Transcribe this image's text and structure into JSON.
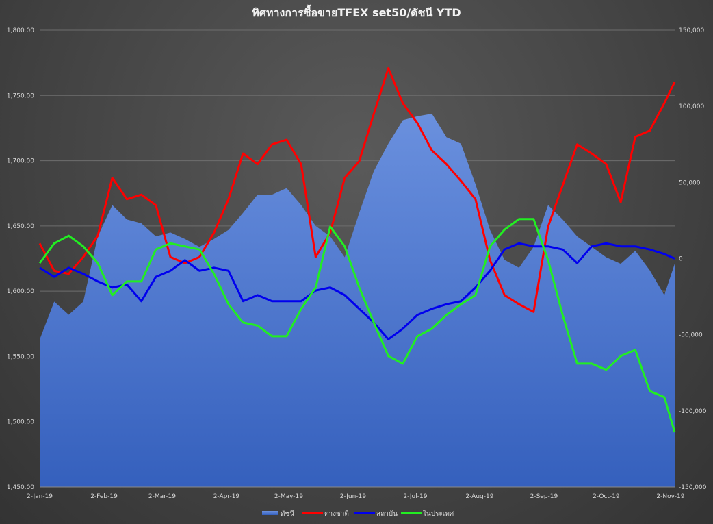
{
  "chart_data": {
    "type": "line",
    "title": "ทิศทางการซื้อขายTFEX set50/ดัชนี YTD",
    "x_unit": "days since 2-Jan-19",
    "x": [
      0,
      7,
      14,
      21,
      28,
      35,
      42,
      49,
      56,
      63,
      70,
      77,
      84,
      91,
      98,
      105,
      112,
      119,
      126,
      133,
      140,
      147,
      154,
      161,
      168,
      175,
      182,
      189,
      196,
      203,
      210,
      217,
      224,
      231,
      238,
      245,
      252,
      259,
      266,
      273,
      280,
      287,
      294,
      301,
      306
    ],
    "xlim": [
      0,
      306
    ],
    "x_ticks": [
      {
        "label": "2-Jan-19",
        "day": 0
      },
      {
        "label": "2-Feb-19",
        "day": 31
      },
      {
        "label": "2-Mar-19",
        "day": 59
      },
      {
        "label": "2-Apr-19",
        "day": 90
      },
      {
        "label": "2-May-19",
        "day": 120
      },
      {
        "label": "2-Jun-19",
        "day": 151
      },
      {
        "label": "2-Jul-19",
        "day": 181
      },
      {
        "label": "2-Aug-19",
        "day": 212
      },
      {
        "label": "2-Sep-19",
        "day": 243
      },
      {
        "label": "2-Oct-19",
        "day": 273
      },
      {
        "label": "2-Nov-19",
        "day": 304
      }
    ],
    "y_left": {
      "ylim": [
        1450,
        1800
      ],
      "ticks": [
        "1,450.00",
        "1,500.00",
        "1,550.00",
        "1,600.00",
        "1,650.00",
        "1,700.00",
        "1,750.00",
        "1,800.00"
      ],
      "tick_values": [
        1450,
        1500,
        1550,
        1600,
        1650,
        1700,
        1750,
        1800
      ]
    },
    "y_right": {
      "ylim": [
        -150000,
        150000
      ],
      "ticks": [
        "-150,000",
        "-100,000",
        "-50,000",
        "0",
        "50,000",
        "100,000",
        "150,000"
      ],
      "tick_values": [
        -150000,
        -100000,
        -50000,
        0,
        50000,
        100000,
        150000
      ]
    },
    "grid": true,
    "legend_position": "bottom",
    "series": [
      {
        "name": "ดัชนี",
        "type": "area",
        "axis": "left",
        "color": "#4a74cc",
        "values": [
          1563,
          1592,
          1582,
          1592,
          1642,
          1666,
          1655,
          1652,
          1642,
          1645,
          1640,
          1634,
          1640,
          1647,
          1660,
          1674,
          1674,
          1679,
          1666,
          1650,
          1642,
          1626,
          1660,
          1692,
          1713,
          1731,
          1734,
          1736,
          1718,
          1713,
          1682,
          1647,
          1624,
          1618,
          1634,
          1666,
          1655,
          1642,
          1634,
          1626,
          1621,
          1631,
          1616,
          1597,
          1621
        ]
      },
      {
        "name": "ต่างชาติ",
        "type": "line",
        "axis": "right",
        "color": "#ff0000",
        "values": [
          10000,
          -8000,
          -10000,
          1000,
          15000,
          53000,
          39000,
          42000,
          35000,
          1000,
          -3000,
          1000,
          17000,
          39000,
          69000,
          62000,
          75000,
          78000,
          62000,
          1000,
          17000,
          53000,
          64000,
          95000,
          125000,
          102000,
          89000,
          71000,
          62000,
          51000,
          39000,
          -1000,
          -24000,
          -30000,
          -35000,
          21000,
          48000,
          75000,
          69000,
          62000,
          37000,
          80000,
          84000,
          102000,
          116000
        ]
      },
      {
        "name": "สถาบัน",
        "type": "line",
        "axis": "right",
        "color": "#0000ee",
        "values": [
          -6000,
          -12000,
          -6000,
          -10000,
          -15000,
          -19000,
          -17000,
          -28000,
          -12000,
          -8000,
          -1000,
          -8000,
          -6000,
          -8000,
          -28000,
          -24000,
          -28000,
          -28000,
          -28000,
          -21000,
          -19000,
          -24000,
          -33000,
          -42000,
          -53000,
          -46000,
          -37000,
          -33000,
          -30000,
          -28000,
          -19000,
          -8000,
          6000,
          10000,
          8000,
          8000,
          6000,
          -3000,
          8000,
          10000,
          8000,
          8000,
          6000,
          3000,
          0
        ]
      },
      {
        "name": "ในประเทศ",
        "type": "line",
        "axis": "right",
        "color": "#22ee22",
        "values": [
          -3000,
          10000,
          15000,
          8000,
          -3000,
          -24000,
          -15000,
          -15000,
          6000,
          10000,
          8000,
          6000,
          -10000,
          -30000,
          -42000,
          -44000,
          -51000,
          -51000,
          -33000,
          -19000,
          21000,
          8000,
          -19000,
          -42000,
          -64000,
          -69000,
          -51000,
          -46000,
          -37000,
          -30000,
          -24000,
          8000,
          19000,
          26000,
          26000,
          -1000,
          -37000,
          -69000,
          -69000,
          -73000,
          -64000,
          -60000,
          -87000,
          -91000,
          -114000
        ]
      }
    ]
  }
}
